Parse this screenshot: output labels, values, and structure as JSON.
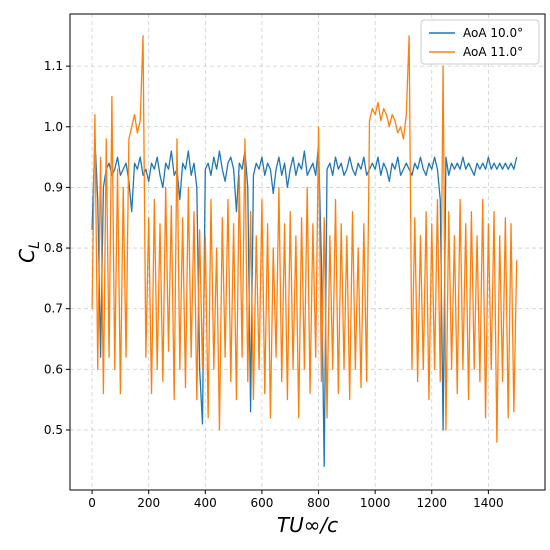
{
  "chart_data": {
    "type": "line",
    "x_label": "TU∞/c",
    "y_label": "C",
    "y_label_sub": "L",
    "x": [
      0,
      10,
      20,
      30,
      40,
      50,
      60,
      70,
      80,
      90,
      100,
      110,
      120,
      130,
      140,
      150,
      160,
      170,
      180,
      190,
      200,
      210,
      220,
      230,
      240,
      250,
      260,
      270,
      280,
      290,
      300,
      310,
      320,
      330,
      340,
      350,
      360,
      370,
      380,
      390,
      400,
      410,
      420,
      430,
      440,
      450,
      460,
      470,
      480,
      490,
      500,
      510,
      520,
      530,
      540,
      550,
      560,
      570,
      580,
      590,
      600,
      610,
      620,
      630,
      640,
      650,
      660,
      670,
      680,
      690,
      700,
      710,
      720,
      730,
      740,
      750,
      760,
      770,
      780,
      790,
      800,
      810,
      820,
      830,
      840,
      850,
      860,
      870,
      880,
      890,
      900,
      910,
      920,
      930,
      940,
      950,
      960,
      970,
      980,
      990,
      1000,
      1010,
      1020,
      1030,
      1040,
      1050,
      1060,
      1070,
      1080,
      1090,
      1100,
      1110,
      1120,
      1130,
      1140,
      1150,
      1160,
      1170,
      1180,
      1190,
      1200,
      1210,
      1220,
      1230,
      1240,
      1250,
      1260,
      1270,
      1280,
      1290,
      1300,
      1310,
      1320,
      1330,
      1340,
      1350,
      1360,
      1370,
      1380,
      1390,
      1400,
      1410,
      1420,
      1430,
      1440,
      1450,
      1460,
      1470,
      1480,
      1490,
      1500
    ],
    "series": [
      {
        "name": "AoA 10.0°",
        "color": "#1f77b4",
        "values": [
          0.83,
          0.98,
          0.88,
          0.62,
          0.9,
          0.93,
          0.94,
          0.92,
          0.93,
          0.95,
          0.92,
          0.93,
          0.94,
          0.91,
          0.86,
          0.94,
          0.93,
          0.95,
          0.92,
          0.93,
          0.91,
          0.94,
          0.93,
          0.95,
          0.92,
          0.9,
          0.94,
          0.93,
          0.96,
          0.92,
          0.93,
          0.88,
          0.94,
          0.93,
          0.96,
          0.92,
          0.94,
          0.9,
          0.6,
          0.51,
          0.93,
          0.94,
          0.92,
          0.95,
          0.93,
          0.96,
          0.93,
          0.91,
          0.94,
          0.95,
          0.93,
          0.86,
          0.94,
          0.93,
          0.96,
          0.9,
          0.53,
          0.92,
          0.94,
          0.93,
          0.95,
          0.92,
          0.94,
          0.93,
          0.89,
          0.93,
          0.95,
          0.92,
          0.94,
          0.9,
          0.93,
          0.95,
          0.92,
          0.94,
          0.93,
          0.96,
          0.92,
          0.93,
          0.94,
          0.92,
          0.97,
          0.78,
          0.44,
          0.93,
          0.94,
          0.92,
          0.95,
          0.93,
          0.94,
          0.92,
          0.93,
          0.95,
          0.93,
          0.92,
          0.94,
          0.93,
          0.95,
          0.92,
          0.93,
          0.94,
          0.93,
          0.95,
          0.92,
          0.94,
          0.93,
          0.91,
          0.94,
          0.93,
          0.95,
          0.92,
          0.93,
          0.94,
          0.93,
          0.92,
          0.94,
          0.93,
          0.95,
          0.93,
          0.92,
          0.94,
          0.93,
          0.95,
          0.93,
          0.88,
          0.5,
          0.95,
          0.92,
          0.94,
          0.93,
          0.94,
          0.93,
          0.95,
          0.93,
          0.94,
          0.93,
          0.92,
          0.94,
          0.93,
          0.94,
          0.93,
          0.95,
          0.93,
          0.94,
          0.93,
          0.94,
          0.93,
          0.94,
          0.93,
          0.94,
          0.93,
          0.95
        ]
      },
      {
        "name": "AoA 11.0°",
        "color": "#ff7f0e",
        "values": [
          0.7,
          1.02,
          0.6,
          0.95,
          0.56,
          0.98,
          0.62,
          1.05,
          0.6,
          0.93,
          0.56,
          0.9,
          0.62,
          0.98,
          1.0,
          1.02,
          0.99,
          1.01,
          1.15,
          0.62,
          0.85,
          0.56,
          0.88,
          0.6,
          0.84,
          0.58,
          0.9,
          0.63,
          0.87,
          0.55,
          0.98,
          0.6,
          0.85,
          0.57,
          0.9,
          0.62,
          0.86,
          0.55,
          0.83,
          0.6,
          0.82,
          0.52,
          0.88,
          0.6,
          0.8,
          0.5,
          0.85,
          0.62,
          0.88,
          0.58,
          0.84,
          0.55,
          0.92,
          0.62,
          0.98,
          0.58,
          0.86,
          0.55,
          0.82,
          0.6,
          0.88,
          0.56,
          0.84,
          0.52,
          0.8,
          0.62,
          0.9,
          0.58,
          0.84,
          0.55,
          0.86,
          0.6,
          0.82,
          0.52,
          0.85,
          0.6,
          0.9,
          0.56,
          0.84,
          0.62,
          1.0,
          0.58,
          0.85,
          0.52,
          0.82,
          0.6,
          0.88,
          0.56,
          0.84,
          0.6,
          0.82,
          0.55,
          0.86,
          0.6,
          0.8,
          0.57,
          0.84,
          0.58,
          1.01,
          1.03,
          1.02,
          1.04,
          1.01,
          1.03,
          1.02,
          1.0,
          1.02,
          1.01,
          0.99,
          1.0,
          0.98,
          1.02,
          1.15,
          0.6,
          0.85,
          0.58,
          0.82,
          0.6,
          0.86,
          0.55,
          0.84,
          0.6,
          0.88,
          0.58,
          1.1,
          0.5,
          0.86,
          0.6,
          0.82,
          0.56,
          0.88,
          0.6,
          0.84,
          0.55,
          0.86,
          0.6,
          0.82,
          0.58,
          0.88,
          0.52,
          0.84,
          0.6,
          0.86,
          0.48,
          0.82,
          0.58,
          0.85,
          0.52,
          0.84,
          0.53,
          0.78
        ]
      }
    ],
    "xlim": [
      -78,
      1600
    ],
    "ylim": [
      0.401,
      1.186
    ],
    "xticks": [
      0,
      200,
      400,
      600,
      800,
      1000,
      1200,
      1400
    ],
    "yticks": [
      0.5,
      0.6,
      0.7,
      0.8,
      0.9,
      {
        "value": 1,
        "label": "1.0"
      },
      1.1
    ],
    "grid": true,
    "legend": "upper right"
  }
}
